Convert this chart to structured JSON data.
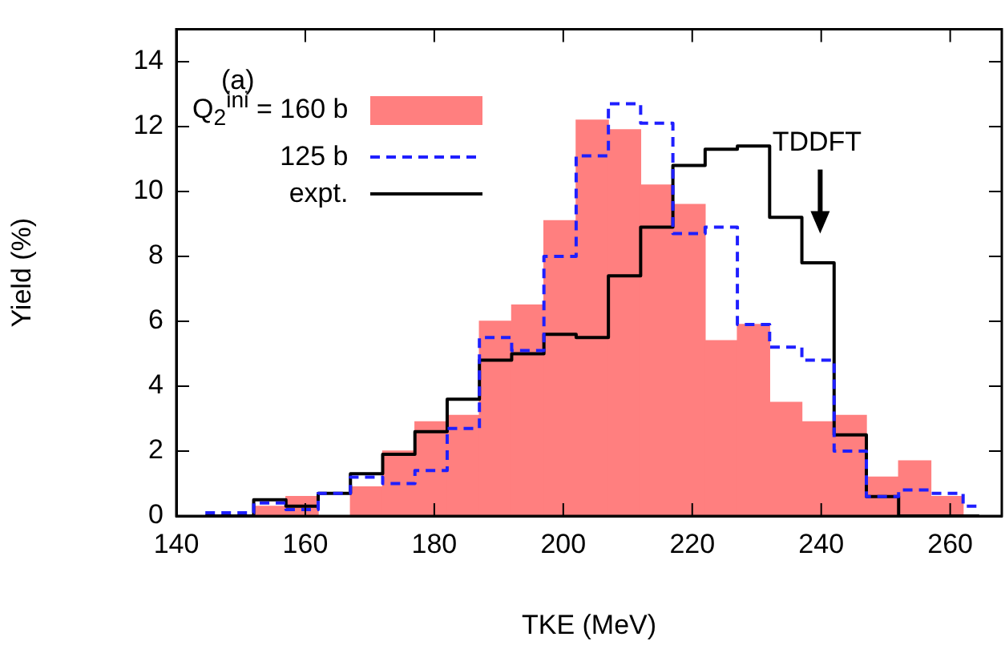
{
  "chart_data": {
    "type": "histogram",
    "xlabel": "TKE (MeV)",
    "ylabel": "Yield (%)",
    "bins": [
      142,
      147,
      152,
      157,
      162,
      167,
      172,
      177,
      182,
      187,
      192,
      197,
      202,
      207,
      212,
      217,
      222,
      227,
      232,
      237,
      242,
      247,
      252,
      257,
      262,
      267
    ],
    "series": [
      {
        "name": "Q$_{2}$$^{ini}$ = 160 b",
        "color": "#ff7f7f",
        "values": [
          0,
          0,
          0.3,
          0.6,
          0,
          0.9,
          2.0,
          2.9,
          3.1,
          6.0,
          6.5,
          9.1,
          12.2,
          11.9,
          10.2,
          9.6,
          5.4,
          5.9,
          3.5,
          2.9,
          3.1,
          1.2,
          1.7,
          0.6,
          0
        ]
      },
      {
        "name": "125 b",
        "type": "step",
        "x": [
          144.5,
          149.5,
          154.5,
          159.5,
          164.5,
          169.5,
          174.5,
          179.5,
          184.5,
          189.5,
          194.5,
          199.5,
          204.5,
          209.5,
          214.5,
          219.5,
          224.5,
          229.5,
          234.5,
          239.5,
          244.5,
          249.5,
          254.5,
          259.5,
          264.5
        ],
        "color": "#1f1fff",
        "line_style": "dashed",
        "values": [
          0.1,
          0.1,
          0.4,
          0.2,
          0.7,
          1.2,
          1.0,
          1.4,
          2.7,
          5.5,
          5.1,
          8.0,
          11.1,
          12.7,
          12.1,
          8.7,
          8.9,
          5.9,
          5.2,
          4.8,
          2.0,
          0.6,
          0.8,
          0.7,
          0.3
        ]
      },
      {
        "name": "expt.",
        "type": "step",
        "x": [
          144.5,
          149.5,
          154.5,
          159.5,
          164.5,
          169.5,
          174.5,
          179.5,
          184.5,
          189.5,
          194.5,
          199.5,
          204.5,
          209.5,
          214.5,
          219.5,
          224.5,
          229.5,
          234.5,
          239.5,
          244.5,
          249.5,
          254.5,
          259.5,
          264.5
        ],
        "color": "#000000",
        "line_style": "solid",
        "values": [
          0,
          0,
          0.5,
          0.3,
          0.7,
          1.3,
          1.9,
          2.6,
          3.6,
          4.8,
          5.0,
          5.6,
          5.5,
          7.4,
          8.9,
          10.8,
          11.3,
          11.4,
          9.2,
          7.8,
          2.5,
          0.6,
          0,
          0,
          0
        ]
      }
    ],
    "xlim": [
      140,
      268
    ],
    "xticks": [
      140,
      160,
      180,
      200,
      220,
      240,
      260
    ],
    "ylim": [
      0,
      15
    ],
    "yticks": [
      0,
      2,
      4,
      6,
      8,
      10,
      12,
      14
    ],
    "grid": false,
    "legend": "top left",
    "annotations": [
      "(a)",
      "TDDFT"
    ]
  }
}
